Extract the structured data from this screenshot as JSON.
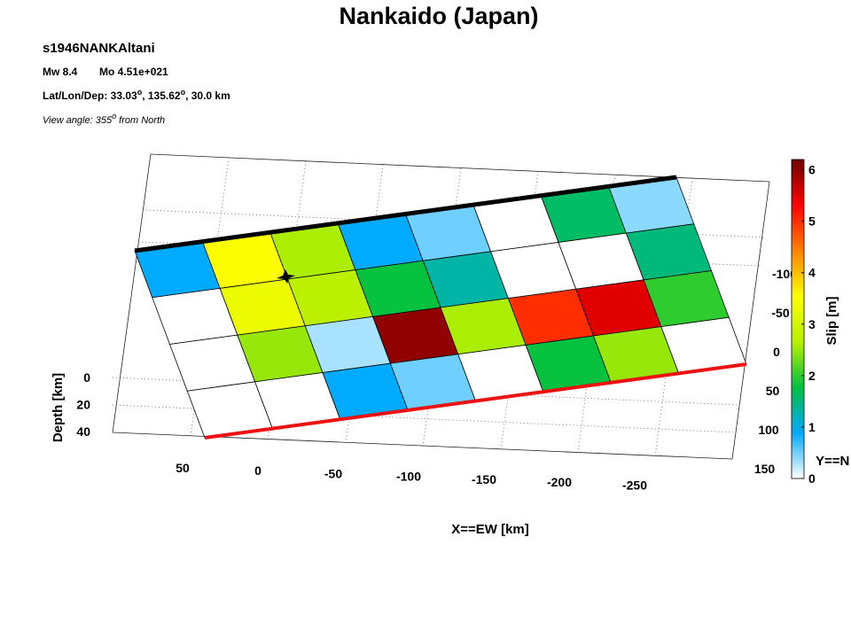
{
  "chart_data": {
    "type": "fault-slip",
    "title": "Nankaido (Japan)",
    "event": "s1946NANKAltani",
    "mw": "Mw 8.4",
    "mo": "Mo 4.51e+021",
    "location": [
      "Lat/Lon/Dep: 33.03",
      "o",
      ", 135.62",
      "o",
      ", 30.0 km"
    ],
    "view_angle": [
      "View angle: 355",
      "o",
      " from North"
    ],
    "xlabel": "X==EW [km]",
    "ylabel": "Y==N",
    "zlabel": "Depth [km]",
    "colorbar_label": "Slip [m]",
    "xticks": [
      50,
      0,
      -50,
      -100,
      -150,
      -200,
      -250
    ],
    "yticks": [
      -100,
      -50,
      0,
      50,
      100,
      150
    ],
    "zticks": [
      0,
      20,
      40
    ],
    "clim": [
      0,
      6.2
    ],
    "cticks": [
      0,
      1,
      2,
      3,
      4,
      5,
      6
    ],
    "colormap": [
      "#ffffff",
      "#00aaff",
      "#00c040",
      "#b8f000",
      "#ffff00",
      "#ff8000",
      "#ff0000",
      "#700000"
    ],
    "slip": [
      [
        0.9,
        3.5,
        2.6,
        0.9,
        0.5,
        0,
        1.6,
        0.4
      ],
      [
        0,
        3.3,
        2.7,
        1.8,
        1.3,
        0,
        0,
        1.5
      ],
      [
        0,
        2.5,
        0.3,
        6.0,
        2.6,
        5.0,
        5.5,
        2.0
      ],
      [
        0,
        0,
        0.9,
        0.5,
        0,
        1.8,
        2.5,
        0
      ]
    ]
  }
}
